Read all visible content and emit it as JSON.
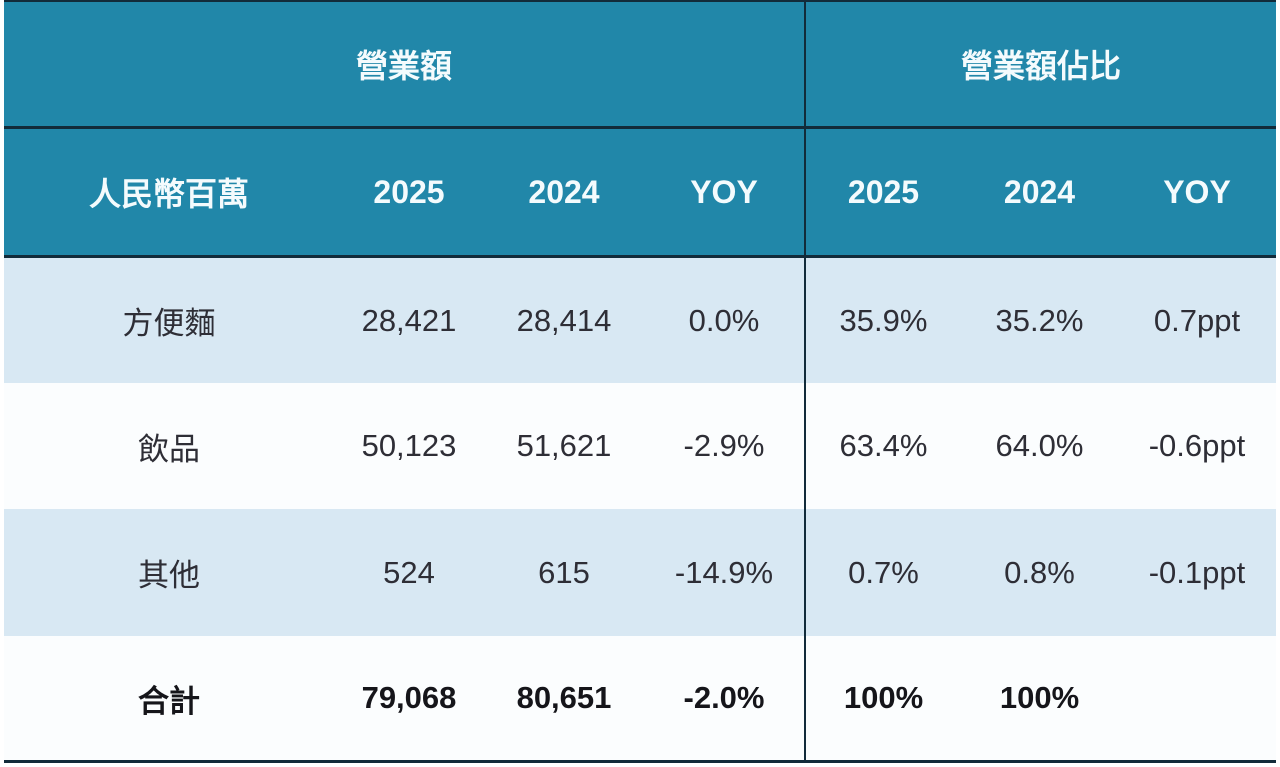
{
  "table": {
    "section_headers": [
      {
        "label": "營業額"
      },
      {
        "label": "營業額佔比"
      }
    ],
    "columns": {
      "label": "人民幣百萬",
      "y2025": "2025",
      "y2024": "2024",
      "yoy": "YOY",
      "share_y2025": "2025",
      "share_y2024": "2024",
      "share_yoy": "YOY"
    },
    "rows": [
      {
        "label": "方便麵",
        "rev_2025": "28,421",
        "rev_2024": "28,414",
        "rev_yoy": "0.0%",
        "share_2025": "35.9%",
        "share_2024": "35.2%",
        "share_yoy": "0.7ppt"
      },
      {
        "label": "飲品",
        "rev_2025": "50,123",
        "rev_2024": "51,621",
        "rev_yoy": "-2.9%",
        "share_2025": "63.4%",
        "share_2024": "64.0%",
        "share_yoy": "-0.6ppt"
      },
      {
        "label": "其他",
        "rev_2025": "524",
        "rev_2024": "615",
        "rev_yoy": "-14.9%",
        "share_2025": "0.7%",
        "share_2024": "0.8%",
        "share_yoy": "-0.1ppt"
      },
      {
        "label": "合計",
        "rev_2025": "79,068",
        "rev_2024": "80,651",
        "rev_yoy": "-2.0%",
        "share_2025": "100%",
        "share_2024": "100%",
        "share_yoy": ""
      }
    ],
    "colors": {
      "header_teal": "#2187a9",
      "row_lightblue": "#d8e8f3",
      "row_white": "#fbfdfe",
      "divider_dark": "#122b3a",
      "header_text": "#f4fbfd",
      "body_text": "#2e2e36"
    }
  },
  "chart_data": {
    "type": "table",
    "title": "營業額 / 營業額佔比",
    "unit_label": "人民幣百萬",
    "column_groups": [
      "營業額",
      "營業額佔比"
    ],
    "columns": [
      "人民幣百萬",
      "2025",
      "2024",
      "YOY",
      "2025",
      "2024",
      "YOY"
    ],
    "rows": [
      [
        "方便麵",
        "28,421",
        "28,414",
        "0.0%",
        "35.9%",
        "35.2%",
        "0.7ppt"
      ],
      [
        "飲品",
        "50,123",
        "51,621",
        "-2.9%",
        "63.4%",
        "64.0%",
        "-0.6ppt"
      ],
      [
        "其他",
        "524",
        "615",
        "-14.9%",
        "0.7%",
        "0.8%",
        "-0.1ppt"
      ],
      [
        "合計",
        "79,068",
        "80,651",
        "-2.0%",
        "100%",
        "100%",
        ""
      ]
    ],
    "revenue_2025": [
      28421,
      50123,
      524,
      79068
    ],
    "revenue_2024": [
      28414,
      51621,
      615,
      80651
    ],
    "revenue_yoy_pct": [
      0.0,
      -2.9,
      -14.9,
      -2.0
    ],
    "share_2025_pct": [
      35.9,
      63.4,
      0.7,
      100
    ],
    "share_2024_pct": [
      35.2,
      64.0,
      0.8,
      100
    ],
    "share_yoy_ppt": [
      0.7,
      -0.6,
      -0.1,
      null
    ]
  }
}
